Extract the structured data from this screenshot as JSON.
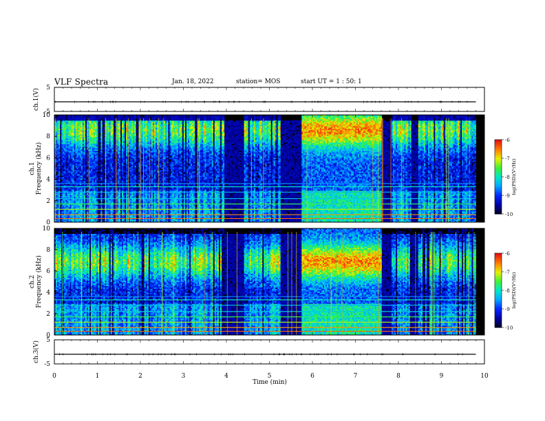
{
  "header": {
    "title": "VLF Spectra",
    "date": "Jan. 18, 2022",
    "station": "station= MOS",
    "start": "start UT =   1 : 50: 1"
  },
  "chart_data": [
    {
      "type": "line",
      "panel": "ch.1 waveform",
      "ylabel": "ch.1(V)",
      "ylim": [
        -5,
        5
      ],
      "yticks": [
        5,
        -5
      ],
      "series": [
        {
          "x": [
            0,
            9.8
          ],
          "values": [
            -1,
            -1
          ]
        }
      ]
    },
    {
      "type": "heatmap",
      "panel": "ch.1 spectrogram",
      "ylabel_top": "ch.1",
      "ylabel": "Frequency (kHz)",
      "ylim": [
        0,
        10
      ],
      "yticks": [
        0,
        2,
        4,
        6,
        8,
        10
      ],
      "xlim": [
        0,
        10
      ],
      "data_extent_min": 9.8,
      "colorbar": {
        "label": "log(PSD)(V²/Hz)",
        "ticks": [
          -6,
          -7,
          -8,
          -9,
          -10
        ],
        "range": [
          -10,
          -6
        ]
      },
      "quiet_intervals_min": [
        [
          3.95,
          4.4
        ],
        [
          5.25,
          5.75
        ],
        [
          7.6,
          7.85
        ],
        [
          8.3,
          8.45
        ]
      ],
      "active_interval_min": [
        5.75,
        7.6
      ]
    },
    {
      "type": "heatmap",
      "panel": "ch.2 spectrogram",
      "ylabel_top": "ch.2",
      "ylabel": "Frequency (kHz)",
      "ylim": [
        0,
        10
      ],
      "yticks": [
        0,
        2,
        4,
        6,
        8,
        10
      ],
      "xlim": [
        0,
        10
      ],
      "data_extent_min": 9.8,
      "colorbar": {
        "label": "log(PSD)(V²/Hz)",
        "ticks": [
          -6,
          -7,
          -8,
          -9,
          -10
        ],
        "range": [
          -10,
          -6
        ]
      },
      "quiet_intervals_min": [
        [
          3.95,
          4.4
        ],
        [
          5.25,
          5.75
        ],
        [
          7.6,
          7.85
        ],
        [
          8.3,
          8.45
        ]
      ],
      "active_interval_min": [
        5.75,
        7.6
      ]
    },
    {
      "type": "line",
      "panel": "ch.3 waveform",
      "ylabel": "ch.3(V)",
      "ylim": [
        -5,
        5
      ],
      "yticks": [
        5,
        -5
      ],
      "xlabel": "Time (min)",
      "xlim": [
        0,
        10
      ],
      "xticks": [
        0,
        1,
        2,
        3,
        4,
        5,
        6,
        7,
        8,
        9,
        10
      ],
      "series": [
        {
          "x": [
            0,
            9.8
          ],
          "values": [
            -1,
            -1
          ]
        }
      ]
    }
  ]
}
